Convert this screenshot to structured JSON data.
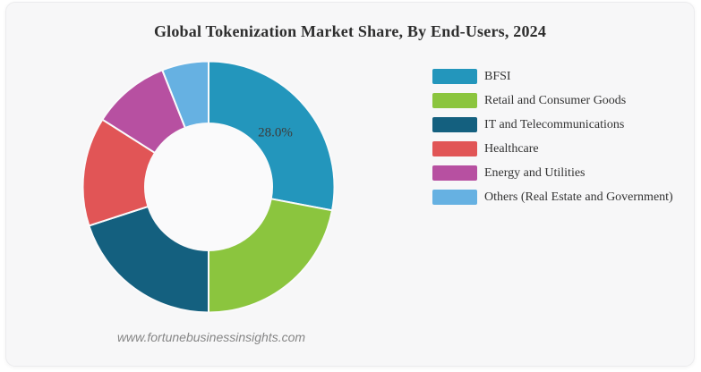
{
  "card": {
    "title": "Global Tokenization Market Share, By End-Users, 2024",
    "watermark": "www.fortunebusinessinsights.com",
    "background_color": "#f7f7f8"
  },
  "chart_data": {
    "type": "pie",
    "subtype": "donut",
    "title": "Global Tokenization Market Share, By End-Users, 2024",
    "start_angle_deg": 0,
    "direction": "clockwise",
    "legend_position": "right",
    "inner_hole_color": "#fafafb",
    "segment_gap_color": "#fafafb",
    "segments": [
      {
        "label": "BFSI",
        "value": 28.0,
        "color": "#2396bc",
        "data_label": "28.0%"
      },
      {
        "label": "Retail and Consumer Goods",
        "value": 22.0,
        "color": "#8bc53e",
        "data_label": ""
      },
      {
        "label": "IT and Telecommunications",
        "value": 20.0,
        "color": "#14607f",
        "data_label": ""
      },
      {
        "label": "Healthcare",
        "value": 14.0,
        "color": "#e15556",
        "data_label": ""
      },
      {
        "label": "Energy and Utilities",
        "value": 10.0,
        "color": "#b750a1",
        "data_label": ""
      },
      {
        "label": "Others (Real Estate and Government)",
        "value": 6.0,
        "color": "#66b1e2",
        "data_label": ""
      }
    ]
  }
}
